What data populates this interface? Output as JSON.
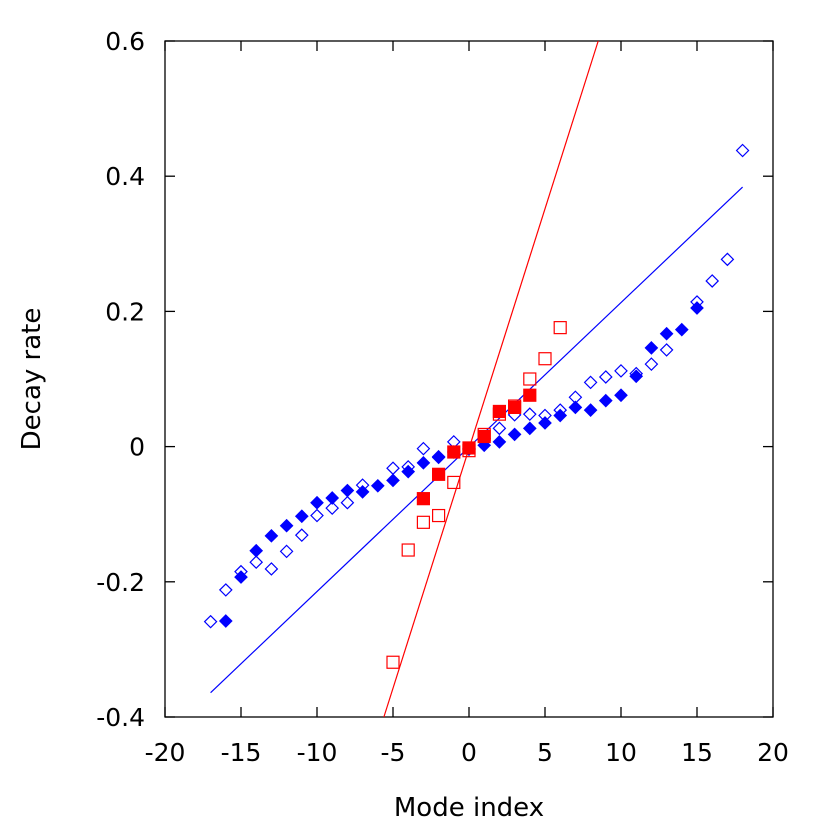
{
  "chart_data": {
    "type": "scatter",
    "title": "",
    "xlabel": "Mode index",
    "ylabel": "Decay rate",
    "xlim": [
      -20,
      20
    ],
    "ylim": [
      -0.4,
      0.6
    ],
    "x_ticks": [
      -20,
      -15,
      -10,
      -5,
      0,
      5,
      10,
      15,
      20
    ],
    "x_tick_labels": [
      "-20",
      "-15",
      "-10",
      "-5",
      "0",
      "5",
      "10",
      "15",
      "20"
    ],
    "y_ticks": [
      -0.4,
      -0.2,
      0,
      0.2,
      0.4,
      0.6
    ],
    "y_tick_labels": [
      "-0.4",
      "-0.2",
      "0",
      "0.2",
      "0.4",
      "0.6"
    ],
    "grid": false,
    "legend": "none",
    "colors": {
      "blue": "#0000ff",
      "red": "#ff0000"
    },
    "series": [
      {
        "marker": "diamond-filled",
        "color": "#0000ff",
        "x": [
          -16,
          -15,
          -14,
          -13,
          -12,
          -11,
          -10,
          -9,
          -8,
          -7,
          -6,
          -5,
          -4,
          -3,
          -2,
          -1,
          0,
          1,
          2,
          3,
          4,
          5,
          6,
          7,
          8,
          9,
          10,
          11,
          12,
          13,
          14,
          15
        ],
        "y": [
          -0.258,
          -0.193,
          -0.154,
          -0.132,
          -0.117,
          -0.103,
          -0.083,
          -0.076,
          -0.065,
          -0.067,
          -0.058,
          -0.05,
          -0.037,
          -0.024,
          -0.015,
          -0.008,
          -0.003,
          0.002,
          0.007,
          0.018,
          0.027,
          0.035,
          0.046,
          0.058,
          0.054,
          0.068,
          0.076,
          0.104,
          0.146,
          0.167,
          0.173,
          0.205
        ]
      },
      {
        "marker": "diamond-open",
        "color": "#0000ff",
        "x": [
          -17,
          -16,
          -15,
          -14,
          -13,
          -12,
          -11,
          -10,
          -9,
          -8,
          -7,
          -5,
          -4,
          -3,
          -2,
          -1,
          0,
          1,
          2,
          3,
          4,
          5,
          6,
          7,
          8,
          9,
          10,
          11,
          12,
          13,
          15,
          16,
          17,
          18
        ],
        "y": [
          -0.259,
          -0.212,
          -0.185,
          -0.171,
          -0.181,
          -0.155,
          -0.131,
          -0.102,
          -0.091,
          -0.083,
          -0.057,
          -0.032,
          -0.03,
          -0.003,
          -0.016,
          0.007,
          -0.004,
          0.012,
          0.027,
          0.047,
          0.048,
          0.046,
          0.054,
          0.073,
          0.095,
          0.103,
          0.112,
          0.108,
          0.122,
          0.143,
          0.214,
          0.245,
          0.277,
          0.438
        ]
      },
      {
        "marker": "square-filled",
        "color": "#ff0000",
        "x": [
          -3,
          -2,
          -1,
          0,
          1,
          2,
          3,
          4
        ],
        "y": [
          -0.077,
          -0.041,
          -0.008,
          -0.002,
          0.015,
          0.052,
          0.058,
          0.076
        ]
      },
      {
        "marker": "square-open",
        "color": "#ff0000",
        "x": [
          -5,
          -4,
          -3,
          -2,
          -1,
          0,
          1,
          2,
          3,
          4,
          5,
          6
        ],
        "y": [
          -0.319,
          -0.153,
          -0.112,
          -0.102,
          -0.053,
          -0.006,
          0.018,
          0.048,
          0.06,
          0.1,
          0.13,
          0.176
        ]
      }
    ],
    "lines": [
      {
        "color": "#0000ff",
        "x": [
          -17,
          18
        ],
        "y": [
          -0.364,
          0.384
        ]
      },
      {
        "color": "#ff0000",
        "x": [
          -5.6,
          8.5
        ],
        "y": [
          -0.4,
          0.6
        ]
      }
    ]
  }
}
